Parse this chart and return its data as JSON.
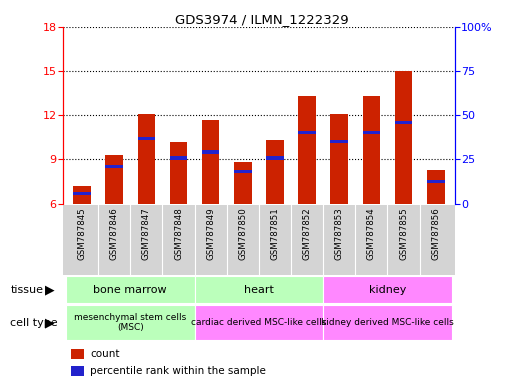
{
  "title": "GDS3974 / ILMN_1222329",
  "samples": [
    "GSM787845",
    "GSM787846",
    "GSM787847",
    "GSM787848",
    "GSM787849",
    "GSM787850",
    "GSM787851",
    "GSM787852",
    "GSM787853",
    "GSM787854",
    "GSM787855",
    "GSM787856"
  ],
  "bar_heights": [
    7.2,
    9.3,
    12.1,
    10.2,
    11.7,
    8.8,
    10.3,
    13.3,
    12.1,
    13.3,
    15.0,
    8.3
  ],
  "blue_positions": [
    6.7,
    8.5,
    10.4,
    9.1,
    9.5,
    8.2,
    9.1,
    10.8,
    10.2,
    10.8,
    11.5,
    7.5
  ],
  "bar_color": "#cc2200",
  "blue_color": "#2222cc",
  "ylim_left": [
    6,
    18
  ],
  "ylim_right": [
    0,
    100
  ],
  "yticks_left": [
    6,
    9,
    12,
    15,
    18
  ],
  "yticks_right": [
    0,
    25,
    50,
    75,
    100
  ],
  "ytick_labels_right": [
    "0",
    "25",
    "50",
    "75",
    "100%"
  ],
  "bar_width": 0.55,
  "tissue_groups": [
    {
      "label": "bone marrow",
      "start": 0,
      "end": 3,
      "color": "#bbffbb"
    },
    {
      "label": "heart",
      "start": 4,
      "end": 7,
      "color": "#bbffbb"
    },
    {
      "label": "kidney",
      "start": 8,
      "end": 11,
      "color": "#ff88ff"
    }
  ],
  "celltype_groups": [
    {
      "label": "mesenchymal stem cells\n(MSC)",
      "start": 0,
      "end": 3,
      "color": "#bbffbb"
    },
    {
      "label": "cardiac derived MSC-like cells",
      "start": 4,
      "end": 7,
      "color": "#ff88ff"
    },
    {
      "label": "kidney derived MSC-like cells",
      "start": 8,
      "end": 11,
      "color": "#ff88ff"
    }
  ],
  "tissue_label": "tissue",
  "celltype_label": "cell type",
  "legend_count": "count",
  "legend_pct": "percentile rank within the sample",
  "sample_bg": "#d4d4d4",
  "border_color": "#ffffff"
}
